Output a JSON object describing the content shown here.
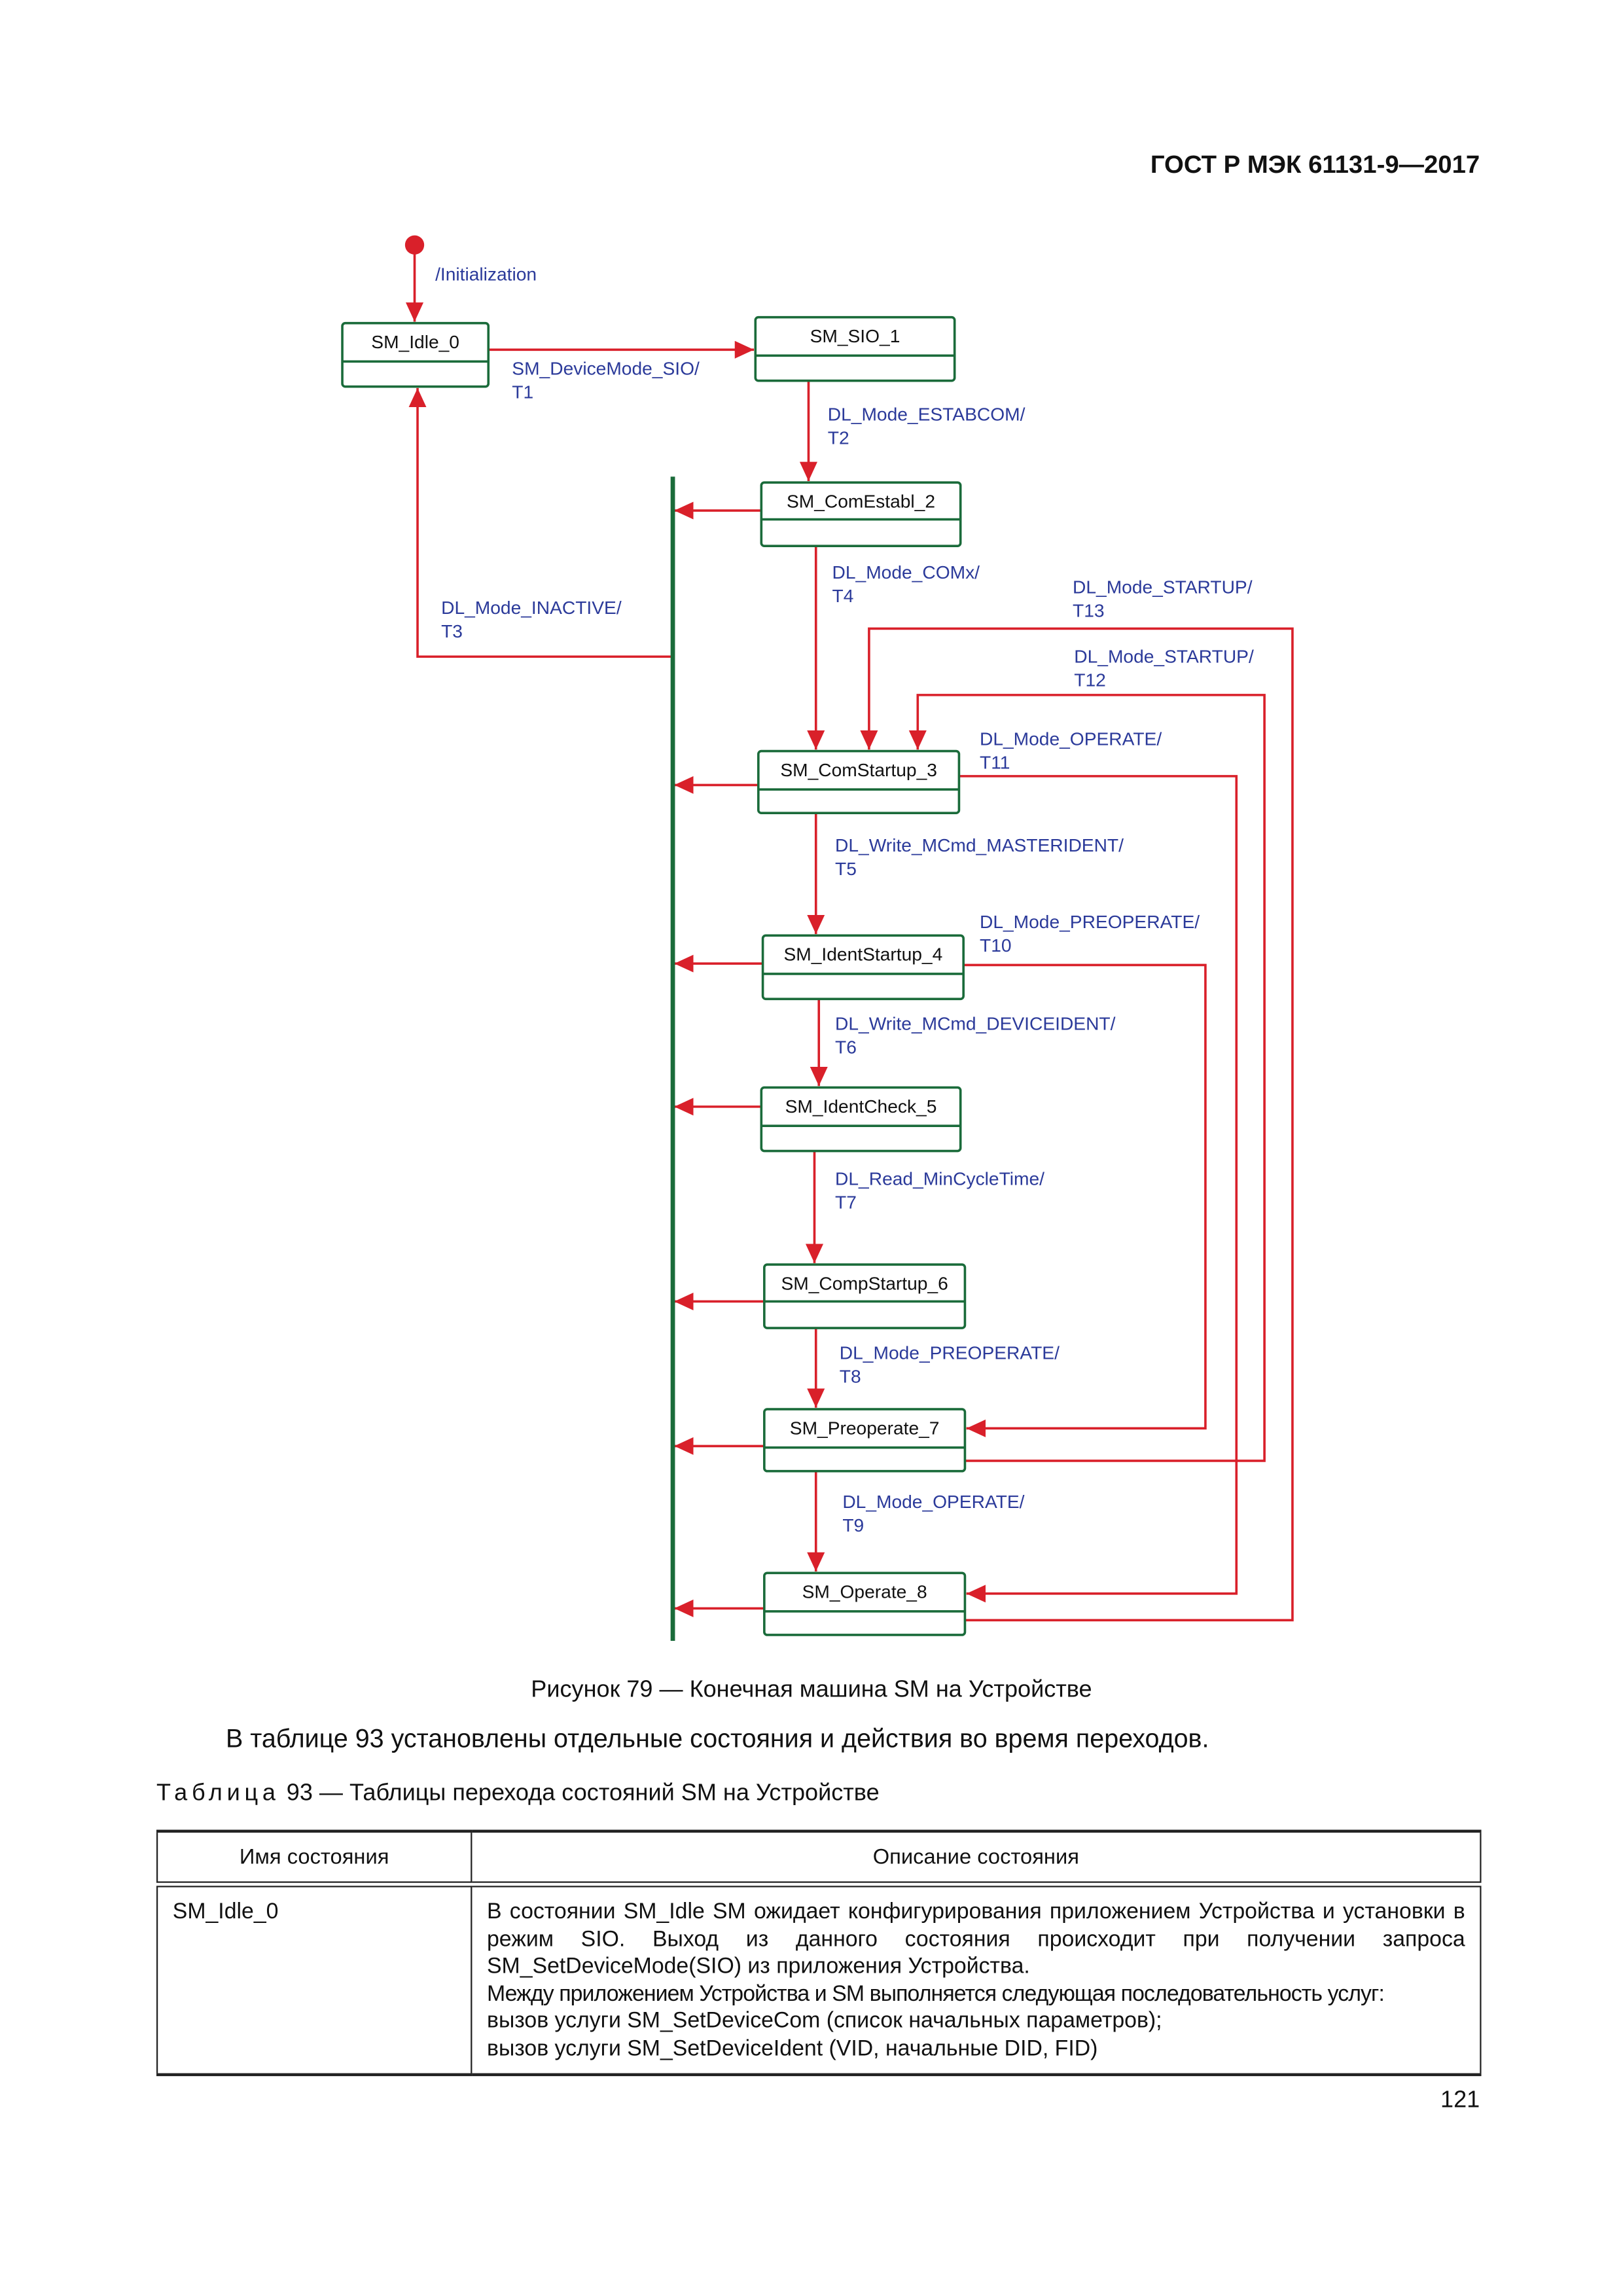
{
  "header": {
    "doc_id": "ГОСТ Р МЭК 61131-9—2017"
  },
  "diagram": {
    "colors": {
      "state_border": "#1a6b3a",
      "transition": "#d9202a",
      "label": "#2b3a9a"
    },
    "initial_label": "/Initialization",
    "states": [
      "SM_Idle_0",
      "SM_SIO_1",
      "SM_ComEstabl_2",
      "SM_ComStartup_3",
      "SM_IdentStartup_4",
      "SM_IdentCheck_5",
      "SM_CompStartup_6",
      "SM_Preoperate_7",
      "SM_Operate_8"
    ],
    "transitions": [
      {
        "event": "SM_DeviceMode_SIO/",
        "id": "T1"
      },
      {
        "event": "DL_Mode_ESTABCOM/",
        "id": "T2"
      },
      {
        "event": "DL_Mode_INACTIVE/",
        "id": "T3"
      },
      {
        "event": "DL_Mode_COMx/",
        "id": "T4"
      },
      {
        "event": "DL_Write_MCmd_MASTERIDENT/",
        "id": "T5"
      },
      {
        "event": "DL_Write_MCmd_DEVICEIDENT/",
        "id": "T6"
      },
      {
        "event": "DL_Read_MinCycleTime/",
        "id": "T7"
      },
      {
        "event": "DL_Mode_PREOPERATE/",
        "id": "T8"
      },
      {
        "event": "DL_Mode_OPERATE/",
        "id": "T9"
      },
      {
        "event": "DL_Mode_PREOPERATE/",
        "id": "T10"
      },
      {
        "event": "DL_Mode_OPERATE/",
        "id": "T11"
      },
      {
        "event": "DL_Mode_STARTUP/",
        "id": "T12"
      },
      {
        "event": "DL_Mode_STARTUP/",
        "id": "T13"
      }
    ]
  },
  "figure_caption": "Рисунок 79 — Конечная машина SM на Устройстве",
  "paragraph": "В таблице 93 установлены отдельные состояния и действия во время переходов.",
  "table_title": {
    "prefix": "Таблица",
    "rest": " 93 — Таблицы перехода состояний SM на Устройстве"
  },
  "table": {
    "headers": [
      "Имя состояния",
      "Описание состояния"
    ],
    "rows": [
      {
        "name": "SM_Idle_0",
        "description": "В состоянии SM_Idle SM ожидает конфигурирования приложением Устройства и установки в режим SIO. Выход из данного состояния происходит при получении запроса SM_SetDeviceMode(SIO) из приложения Устройства.",
        "line2": "Между приложением Устройства и SM выполняется следующая последовательность услуг:",
        "line3": "вызов услуги SM_SetDeviceCom (список начальных параметров);",
        "line4": "вызов услуги SM_SetDeviceIdent (VID, начальные DID, FID)"
      }
    ]
  },
  "page_number": "121"
}
